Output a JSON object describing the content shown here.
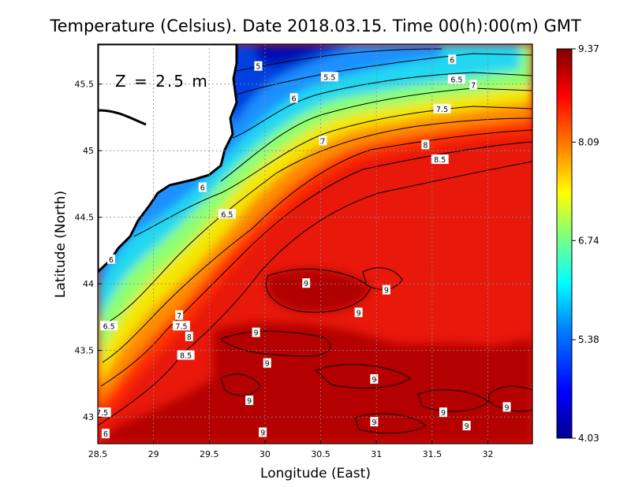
{
  "chart_data": {
    "type": "heatmap",
    "title": "Temperature (Celsius). Date 2018.03.15. Time 00(h):00(m)  GMT",
    "xlabel": "Longitude (East)",
    "ylabel": "Latitude (North)",
    "annotation": "Z  =  2.5  m",
    "xlim": [
      28.5,
      32.4
    ],
    "ylim": [
      42.8,
      45.8
    ],
    "x_ticks": [
      28.5,
      29,
      29.5,
      30,
      30.5,
      31,
      31.5,
      32
    ],
    "x_tick_labels": [
      "28.5",
      "29",
      "29.5",
      "30",
      "30.5",
      "31",
      "31.5",
      "32"
    ],
    "y_ticks": [
      43,
      43.5,
      44,
      44.5,
      45,
      45.5
    ],
    "y_tick_labels": [
      "43",
      "43.5",
      "44",
      "44.5",
      "45",
      "45.5"
    ],
    "grid": true,
    "colorbar": {
      "min": 4.03,
      "max": 9.37,
      "ticks": [
        9.37,
        8.09,
        6.74,
        5.38,
        4.03
      ],
      "tick_labels": [
        "9.37",
        "8.09",
        "6.74",
        "5.38",
        "4.03"
      ],
      "colors": [
        "#00008f",
        "#0000ff",
        "#0080ff",
        "#00ffff",
        "#80ff80",
        "#ffff00",
        "#ff8000",
        "#ff0000",
        "#800000"
      ]
    },
    "contour_labels": [
      {
        "text": "5",
        "x": 29.94,
        "y": 45.63
      },
      {
        "text": "5.5",
        "x": 30.58,
        "y": 45.55
      },
      {
        "text": "6",
        "x": 31.68,
        "y": 45.68
      },
      {
        "text": "6.5",
        "x": 31.72,
        "y": 45.53
      },
      {
        "text": "7",
        "x": 31.87,
        "y": 45.49
      },
      {
        "text": "7.5",
        "x": 31.59,
        "y": 45.31
      },
      {
        "text": "6",
        "x": 30.26,
        "y": 45.39
      },
      {
        "text": "8",
        "x": 31.44,
        "y": 45.04
      },
      {
        "text": "8.5",
        "x": 31.57,
        "y": 44.93
      },
      {
        "text": "7",
        "x": 30.52,
        "y": 45.07
      },
      {
        "text": "6",
        "x": 29.44,
        "y": 44.72
      },
      {
        "text": "6.5",
        "x": 29.66,
        "y": 44.52
      },
      {
        "text": "6",
        "x": 28.62,
        "y": 44.18
      },
      {
        "text": "9",
        "x": 30.37,
        "y": 44.0
      },
      {
        "text": "9",
        "x": 31.09,
        "y": 43.95
      },
      {
        "text": "7",
        "x": 29.23,
        "y": 43.76
      },
      {
        "text": "7.5",
        "x": 29.25,
        "y": 43.68
      },
      {
        "text": "8",
        "x": 29.32,
        "y": 43.6
      },
      {
        "text": "6.5",
        "x": 28.6,
        "y": 43.68
      },
      {
        "text": "9",
        "x": 29.92,
        "y": 43.63
      },
      {
        "text": "9",
        "x": 30.84,
        "y": 43.78
      },
      {
        "text": "8.5",
        "x": 29.29,
        "y": 43.46
      },
      {
        "text": "9",
        "x": 30.02,
        "y": 43.4
      },
      {
        "text": "9",
        "x": 30.98,
        "y": 43.28
      },
      {
        "text": "9",
        "x": 29.86,
        "y": 43.12
      },
      {
        "text": "9",
        "x": 31.6,
        "y": 43.03
      },
      {
        "text": "9",
        "x": 32.17,
        "y": 43.07
      },
      {
        "text": "7.5",
        "x": 28.54,
        "y": 43.03
      },
      {
        "text": "9",
        "x": 30.98,
        "y": 42.96
      },
      {
        "text": "9",
        "x": 31.81,
        "y": 42.93
      },
      {
        "text": "6",
        "x": 28.57,
        "y": 42.87
      },
      {
        "text": "9",
        "x": 29.98,
        "y": 42.88
      }
    ]
  }
}
